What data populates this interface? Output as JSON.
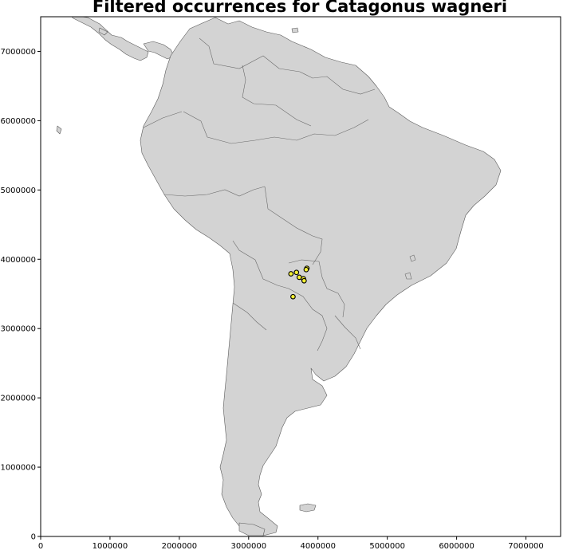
{
  "chart_data": {
    "type": "scatter",
    "title": "Filtered occurrences for Catagonus wagneri",
    "xlabel": "",
    "ylabel": "",
    "xlim": [
      0,
      7500000
    ],
    "ylim": [
      0,
      7500000
    ],
    "x_ticks": [
      0,
      1000000,
      2000000,
      3000000,
      4000000,
      5000000,
      6000000,
      7000000
    ],
    "y_ticks": [
      0,
      1000000,
      2000000,
      3000000,
      4000000,
      5000000,
      6000000,
      7000000
    ],
    "x_tick_labels": [
      "0",
      "1000000",
      "2000000",
      "3000000",
      "4000000",
      "5000000",
      "6000000",
      "7000000"
    ],
    "y_tick_labels": [
      "0",
      "1000000",
      "2000000",
      "3000000",
      "4000000",
      "5000000",
      "6000000",
      "7000000"
    ],
    "grid": false,
    "basemap": "South America country outlines",
    "colors": {
      "land": "#d3d3d3",
      "coast": "#5a5a5a",
      "point_fill": "#f5f032",
      "point_edge": "#000000"
    },
    "points": [
      {
        "x": 3840000,
        "y": 3870000
      },
      {
        "x": 3830000,
        "y": 3850000
      },
      {
        "x": 3610000,
        "y": 3790000
      },
      {
        "x": 3690000,
        "y": 3810000
      },
      {
        "x": 3730000,
        "y": 3740000
      },
      {
        "x": 3790000,
        "y": 3720000
      },
      {
        "x": 3800000,
        "y": 3690000
      },
      {
        "x": 3640000,
        "y": 3460000
      }
    ]
  }
}
